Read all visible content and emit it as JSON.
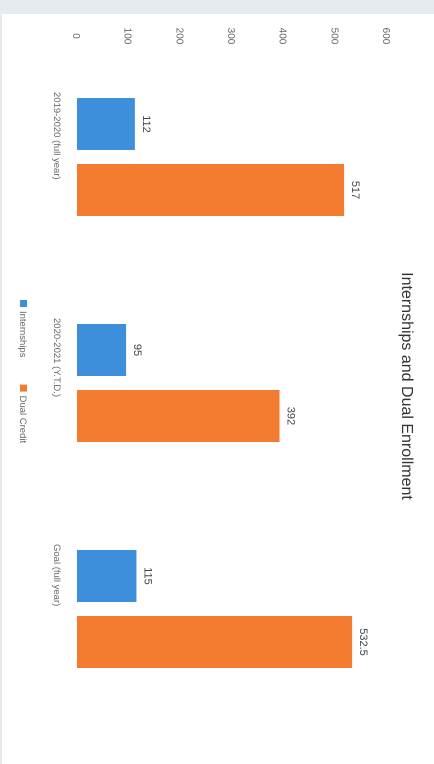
{
  "chart_data": {
    "type": "bar",
    "orientation": "rotated-90-clockwise",
    "title": "Internships and Dual Enrollment",
    "categories": [
      "2019-2020 (full year)",
      "2020-2021 (Y.T.D.)",
      "Goal (full year)"
    ],
    "series": [
      {
        "name": "Internships",
        "values": [
          112,
          95,
          115
        ],
        "labels": [
          "112",
          "95",
          "115"
        ]
      },
      {
        "name": "Dual Credit",
        "values": [
          517,
          392,
          532.5
        ],
        "labels": [
          "517",
          "392",
          "532.5"
        ]
      }
    ],
    "ylim": [
      0,
      600
    ],
    "yticks": [
      "0",
      "100",
      "200",
      "300",
      "400",
      "500",
      "600"
    ],
    "legend_position": "bottom",
    "grid": false,
    "colors": {
      "Internships": "#3d8fdc",
      "Dual Credit": "#f47c30"
    }
  }
}
